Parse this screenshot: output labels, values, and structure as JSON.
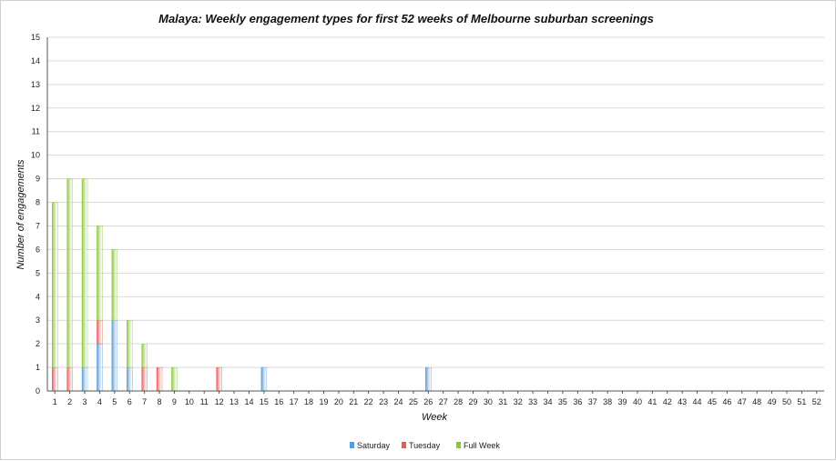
{
  "chart_data": {
    "type": "bar",
    "stacked": true,
    "title": "Malaya: Weekly engagement types for first 52 weeks of Melbourne suburban screenings",
    "xlabel": "Week",
    "ylabel": "Number of engagements",
    "ylim": [
      0,
      15
    ],
    "yticks": [
      "0",
      "1",
      "2",
      "3",
      "4",
      "5",
      "6",
      "7",
      "8",
      "9",
      "10",
      "11",
      "12",
      "13",
      "14",
      "15"
    ],
    "categories": [
      "1",
      "2",
      "3",
      "4",
      "5",
      "6",
      "7",
      "8",
      "9",
      "10",
      "11",
      "12",
      "13",
      "14",
      "15",
      "16",
      "17",
      "18",
      "19",
      "20",
      "21",
      "22",
      "23",
      "24",
      "25",
      "26",
      "27",
      "28",
      "29",
      "30",
      "31",
      "32",
      "33",
      "34",
      "35",
      "36",
      "37",
      "38",
      "39",
      "40",
      "41",
      "42",
      "43",
      "44",
      "45",
      "46",
      "47",
      "48",
      "49",
      "50",
      "51",
      "52"
    ],
    "grid": true,
    "legend_position": "bottom",
    "series": [
      {
        "name": "Saturday",
        "color": "#5b9bd5",
        "values": [
          0,
          0,
          1,
          2,
          3,
          1,
          0,
          0,
          0,
          0,
          0,
          0,
          0,
          0,
          1,
          0,
          0,
          0,
          0,
          0,
          0,
          0,
          0,
          0,
          0,
          1,
          0,
          0,
          0,
          0,
          0,
          0,
          0,
          0,
          0,
          0,
          0,
          0,
          0,
          0,
          0,
          0,
          0,
          0,
          0,
          0,
          0,
          0,
          0,
          0,
          0,
          0
        ]
      },
      {
        "name": "Tuesday",
        "color": "#e85a5a",
        "values": [
          1,
          1,
          0,
          1,
          0,
          0,
          1,
          1,
          0,
          0,
          0,
          1,
          0,
          0,
          0,
          0,
          0,
          0,
          0,
          0,
          0,
          0,
          0,
          0,
          0,
          0,
          0,
          0,
          0,
          0,
          0,
          0,
          0,
          0,
          0,
          0,
          0,
          0,
          0,
          0,
          0,
          0,
          0,
          0,
          0,
          0,
          0,
          0,
          0,
          0,
          0,
          0
        ]
      },
      {
        "name": "Full Week",
        "color": "#8cc63f",
        "values": [
          7,
          8,
          8,
          4,
          3,
          2,
          1,
          0,
          1,
          0,
          0,
          0,
          0,
          0,
          0,
          0,
          0,
          0,
          0,
          0,
          0,
          0,
          0,
          0,
          0,
          0,
          0,
          0,
          0,
          0,
          0,
          0,
          0,
          0,
          0,
          0,
          0,
          0,
          0,
          0,
          0,
          0,
          0,
          0,
          0,
          0,
          0,
          0,
          0,
          0,
          0,
          0
        ]
      }
    ]
  }
}
